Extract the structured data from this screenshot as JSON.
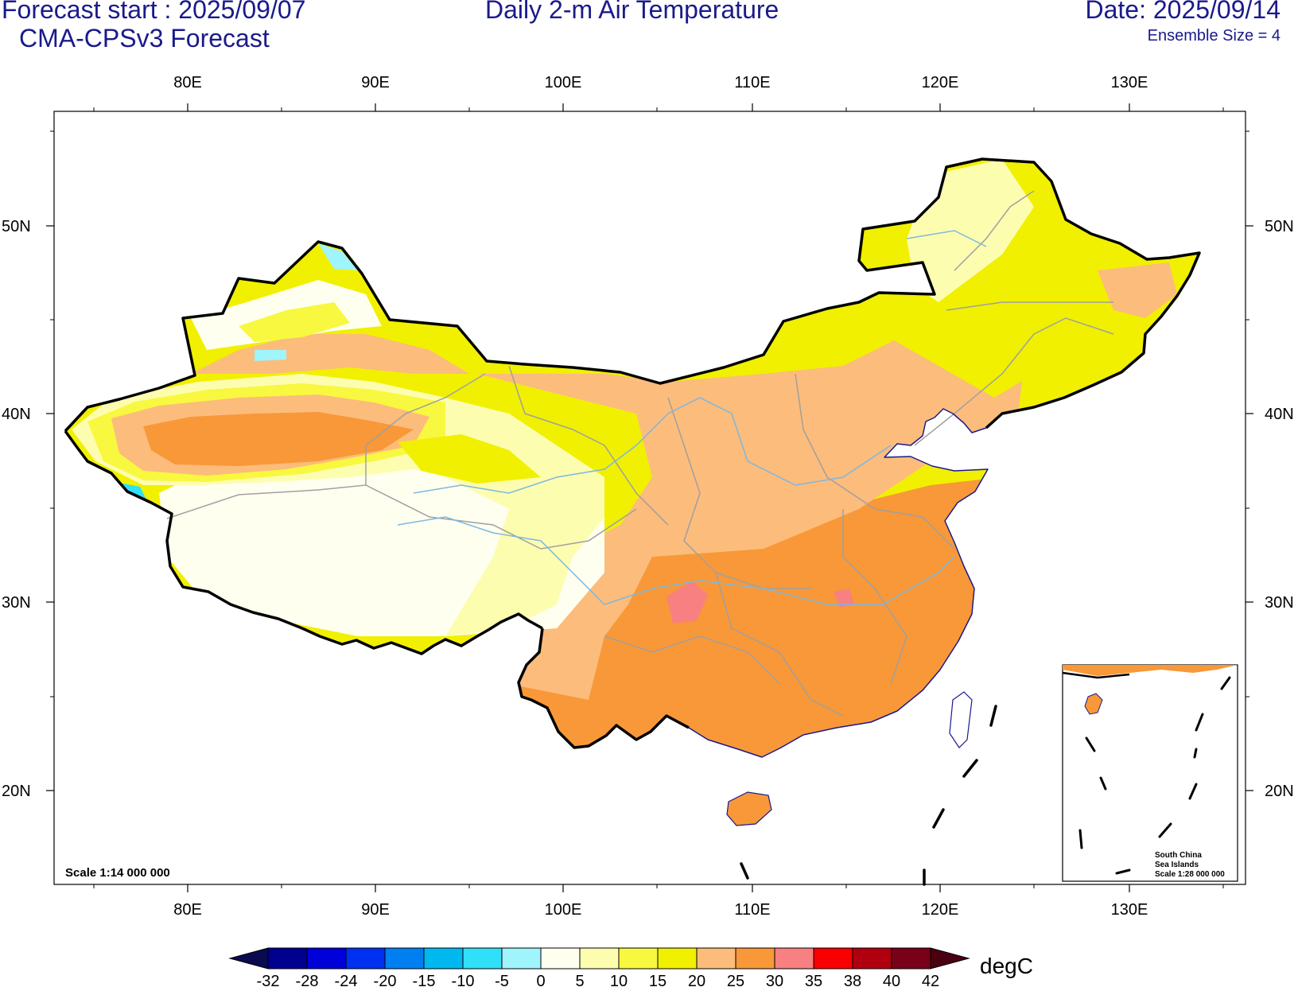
{
  "header": {
    "forecast_start": "Forecast start : 2025/09/07",
    "model": "CMA-CPSv3 Forecast",
    "title": "Daily 2-m Air Temperature",
    "date": "Date: 2025/09/14",
    "ensemble": "Ensemble Size = 4"
  },
  "map": {
    "lon_labels": [
      "80E",
      "90E",
      "100E",
      "110E",
      "120E",
      "130E"
    ],
    "lat_labels": [
      "50N",
      "40N",
      "30N",
      "20N"
    ],
    "scale_main": "Scale 1:14 000 000",
    "inset_title": [
      "South China",
      "Sea Islands",
      "Scale 1:28 000 000"
    ],
    "colors": {
      "boundary": "#000000",
      "province_line": "#a0a0a0",
      "river": "#7cb8e0",
      "coast": "#1a1a8c"
    }
  },
  "colorbar": {
    "unit": "degC",
    "labels": [
      "-32",
      "-28",
      "-24",
      "-20",
      "-15",
      "-10",
      "-5",
      "0",
      "5",
      "10",
      "15",
      "20",
      "25",
      "30",
      "35",
      "38",
      "40",
      "42"
    ],
    "under_color": "#0a0a50",
    "over_color": "#4a0010",
    "colors": [
      "#000090",
      "#0000d8",
      "#0030f0",
      "#0080f0",
      "#00b8f0",
      "#30e0f8",
      "#a0f4fc",
      "#fffff0",
      "#fdfdb0",
      "#f8f840",
      "#f0f000",
      "#fcbc7c",
      "#f89838",
      "#f88080",
      "#f80000",
      "#b00010",
      "#780018"
    ]
  }
}
